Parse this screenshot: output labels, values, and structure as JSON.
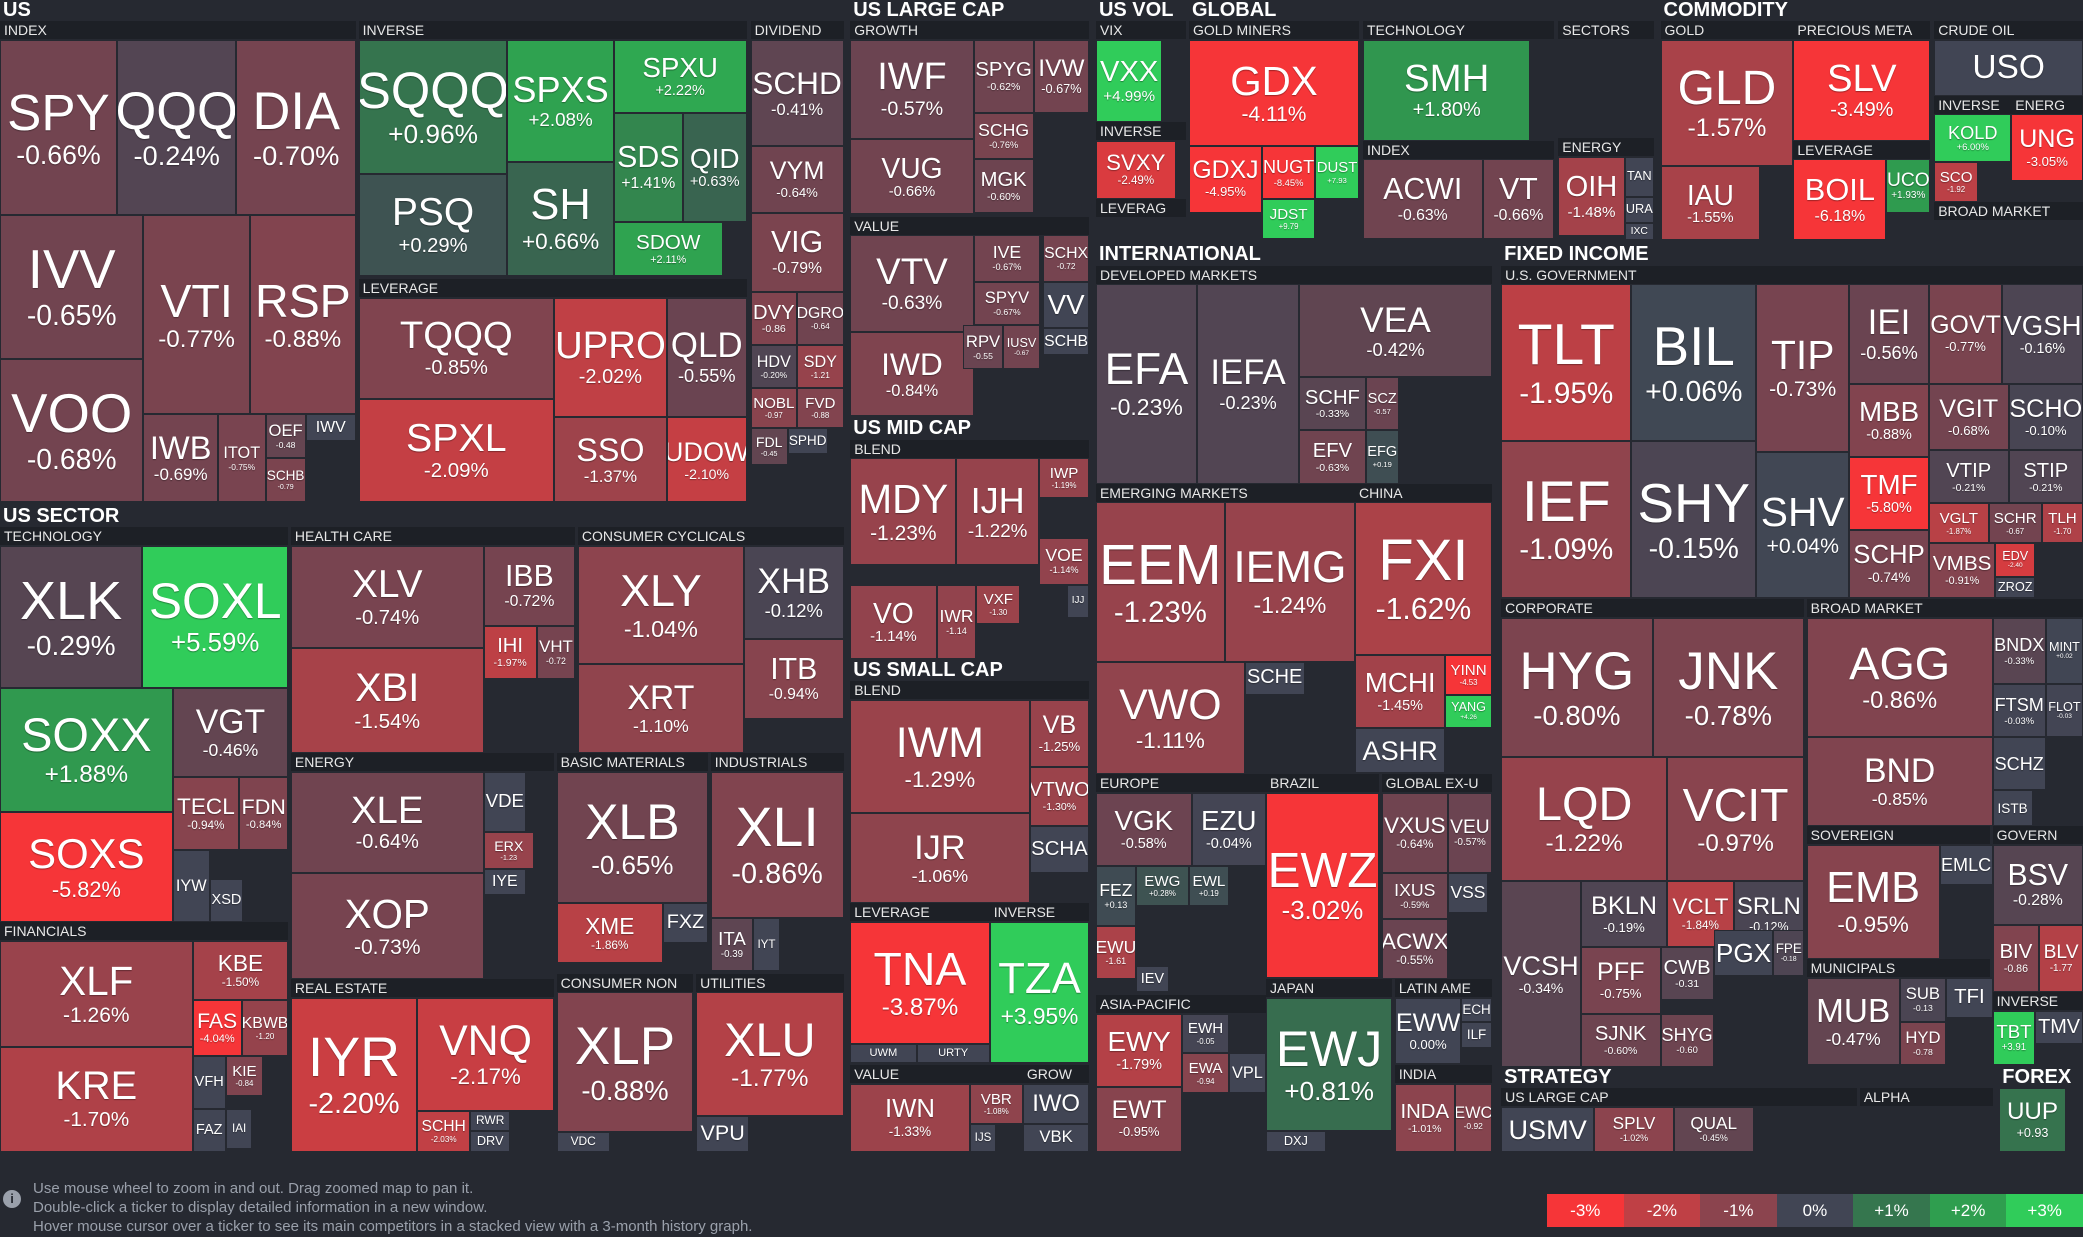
{
  "sections": [
    "US",
    "US LARGE CAP",
    "US VOL",
    "GLOBAL",
    "COMMODITY",
    "US SECTOR",
    "US MID CAP",
    "US SMALL CAP",
    "INTERNATIONAL",
    "FIXED INCOME",
    "STRATEGY",
    "FOREX"
  ],
  "groups": [
    "INDEX",
    "INVERSE",
    "DIVIDEND",
    "LEVERAGE",
    "GROWTH",
    "VALUE",
    "VIX",
    "INVERSE",
    "LEVERAG",
    "GOLD MINERS",
    "TECHNOLOGY",
    "INDEX",
    "SECTORS",
    "ENERGY",
    "GOLD",
    "PRECIOUS META",
    "LEVERAGE",
    "CRUDE OIL",
    "INVERSE",
    "ENERG",
    "BROAD MARKET",
    "TECHNOLOGY",
    "FINANCIALS",
    "HEALTH CARE",
    "ENERGY",
    "REAL ESTATE",
    "CONSUMER CYCLICALS",
    "BASIC MATERIALS",
    "INDUSTRIALS",
    "CONSUMER NON",
    "UTILITIES",
    "BLEND",
    "BLEND",
    "LEVERAGE",
    "INVERSE",
    "VALUE",
    "GROW",
    "DEVELOPED MARKETS",
    "EMERGING MARKETS",
    "CHINA",
    "EUROPE",
    "BRAZIL",
    "GLOBAL EX-U",
    "ASIA-PACIFIC",
    "JAPAN",
    "LATIN AME",
    "INDIA",
    "U.S. GOVERNMENT",
    "CORPORATE",
    "BROAD MARKET",
    "SOVEREIGN",
    "GOVERN",
    "MUNICIPALS",
    "INVERSE",
    "US LARGE CAP",
    "ALPHA"
  ],
  "tiles": [
    {
      "ticker": "SPY",
      "change": "-0.66%"
    },
    {
      "ticker": "QQQ",
      "change": "-0.24%"
    },
    {
      "ticker": "DIA",
      "change": "-0.70%"
    },
    {
      "ticker": "IVV",
      "change": "-0.65%"
    },
    {
      "ticker": "VTI",
      "change": "-0.77%"
    },
    {
      "ticker": "RSP",
      "change": "-0.88%"
    },
    {
      "ticker": "VOO",
      "change": "-0.68%"
    },
    {
      "ticker": "IWB",
      "change": "-0.69%"
    },
    {
      "ticker": "ITOT",
      "change": "-0.75%"
    },
    {
      "ticker": "OEF",
      "change": "-0.48"
    },
    {
      "ticker": "IWV"
    },
    {
      "ticker": "SCHB",
      "change": "-0.79"
    },
    {
      "ticker": "SQQQ",
      "change": "+0.96%"
    },
    {
      "ticker": "SPXS",
      "change": "+2.08%"
    },
    {
      "ticker": "SPXU",
      "change": "+2.22%"
    },
    {
      "ticker": "PSQ",
      "change": "+0.29%"
    },
    {
      "ticker": "SH",
      "change": "+0.66%"
    },
    {
      "ticker": "SDS",
      "change": "+1.41%"
    },
    {
      "ticker": "QID",
      "change": "+0.63%"
    },
    {
      "ticker": "SDOW",
      "change": "+2.11%"
    },
    {
      "ticker": "TQQQ",
      "change": "-0.85%"
    },
    {
      "ticker": "SPXL",
      "change": "-2.09%"
    },
    {
      "ticker": "UPRO",
      "change": "-2.02%"
    },
    {
      "ticker": "QLD",
      "change": "-0.55%"
    },
    {
      "ticker": "SSO",
      "change": "-1.37%"
    },
    {
      "ticker": "UDOW",
      "change": "-2.10%"
    },
    {
      "ticker": "SCHD",
      "change": "-0.41%"
    },
    {
      "ticker": "VYM",
      "change": "-0.64%"
    },
    {
      "ticker": "VIG",
      "change": "-0.79%"
    },
    {
      "ticker": "DVY",
      "change": "-0.86"
    },
    {
      "ticker": "DGRO",
      "change": "-0.64"
    },
    {
      "ticker": "HDV",
      "change": "-0.20%"
    },
    {
      "ticker": "SDY",
      "change": "-1.21"
    },
    {
      "ticker": "NOBL",
      "change": "-0.97"
    },
    {
      "ticker": "FVD",
      "change": "-0.88"
    },
    {
      "ticker": "FDL",
      "change": "-0.45"
    },
    {
      "ticker": "SPHD"
    },
    {
      "ticker": "IWF",
      "change": "-0.57%"
    },
    {
      "ticker": "SPYG",
      "change": "-0.62%"
    },
    {
      "ticker": "IVW",
      "change": "-0.67%"
    },
    {
      "ticker": "SCHG",
      "change": "-0.76%"
    },
    {
      "ticker": "MGK",
      "change": "-0.60%"
    },
    {
      "ticker": "VUG",
      "change": "-0.66%"
    },
    {
      "ticker": "VTV",
      "change": "-0.63%"
    },
    {
      "ticker": "IWD",
      "change": "-0.84%"
    },
    {
      "ticker": "IVE",
      "change": "-0.67%"
    },
    {
      "ticker": "SPYV",
      "change": "-0.67%"
    },
    {
      "ticker": "RPV",
      "change": "-0.55"
    },
    {
      "ticker": "IUSV",
      "change": "-0.67"
    },
    {
      "ticker": "SCHX",
      "change": "-0.72"
    },
    {
      "ticker": "VV"
    },
    {
      "ticker": "SCHB"
    },
    {
      "ticker": "VXX",
      "change": "+4.99%"
    },
    {
      "ticker": "SVXY",
      "change": "-2.49%"
    },
    {
      "ticker": "GDX",
      "change": "-4.11%"
    },
    {
      "ticker": "GDXJ",
      "change": "-4.95%"
    },
    {
      "ticker": "NUGT",
      "change": "-8.45%"
    },
    {
      "ticker": "DUST",
      "change": "+7.93"
    },
    {
      "ticker": "JDST",
      "change": "+9.79"
    },
    {
      "ticker": "SMH",
      "change": "+1.80%"
    },
    {
      "ticker": "ACWI",
      "change": "-0.63%"
    },
    {
      "ticker": "VT",
      "change": "-0.66%"
    },
    {
      "ticker": "OIH",
      "change": "-1.48%"
    },
    {
      "ticker": "TAN"
    },
    {
      "ticker": "URA"
    },
    {
      "ticker": "IXC"
    },
    {
      "ticker": "GLD",
      "change": "-1.57%"
    },
    {
      "ticker": "IAU",
      "change": "-1.55%"
    },
    {
      "ticker": "SLV",
      "change": "-3.49%"
    },
    {
      "ticker": "BOIL",
      "change": "-6.18%"
    },
    {
      "ticker": "UCO",
      "change": "+1.93%"
    },
    {
      "ticker": "USO"
    },
    {
      "ticker": "KOLD",
      "change": "+6.00%"
    },
    {
      "ticker": "SCO",
      "change": "-1.92"
    },
    {
      "ticker": "UNG",
      "change": "-3.05%"
    },
    {
      "ticker": "XLK",
      "change": "-0.29%"
    },
    {
      "ticker": "SOXL",
      "change": "+5.59%"
    },
    {
      "ticker": "SOXX",
      "change": "+1.88%"
    },
    {
      "ticker": "SOXS",
      "change": "-5.82%"
    },
    {
      "ticker": "VGT",
      "change": "-0.46%"
    },
    {
      "ticker": "TECL",
      "change": "-0.94%"
    },
    {
      "ticker": "FDN",
      "change": "-0.84%"
    },
    {
      "ticker": "IYW"
    },
    {
      "ticker": "XSD"
    },
    {
      "ticker": "XLF",
      "change": "-1.26%"
    },
    {
      "ticker": "KRE",
      "change": "-1.70%"
    },
    {
      "ticker": "KBE",
      "change": "-1.50%"
    },
    {
      "ticker": "FAS",
      "change": "-4.04%"
    },
    {
      "ticker": "KBWB",
      "change": "-1.20"
    },
    {
      "ticker": "VFH"
    },
    {
      "ticker": "KIE",
      "change": "-0.84"
    },
    {
      "ticker": "FAZ"
    },
    {
      "ticker": "IAI"
    },
    {
      "ticker": "XLV",
      "change": "-0.74%"
    },
    {
      "ticker": "XBI",
      "change": "-1.54%"
    },
    {
      "ticker": "IBB",
      "change": "-0.72%"
    },
    {
      "ticker": "IHI",
      "change": "-1.97%"
    },
    {
      "ticker": "VHT",
      "change": "-0.72"
    },
    {
      "ticker": "XLY",
      "change": "-1.04%"
    },
    {
      "ticker": "XRT",
      "change": "-1.10%"
    },
    {
      "ticker": "XHB",
      "change": "-0.12%"
    },
    {
      "ticker": "ITB",
      "change": "-0.94%"
    },
    {
      "ticker": "XLE",
      "change": "-0.64%"
    },
    {
      "ticker": "XOP",
      "change": "-0.73%"
    },
    {
      "ticker": "VDE"
    },
    {
      "ticker": "ERX",
      "change": "-1.23"
    },
    {
      "ticker": "IYE"
    },
    {
      "ticker": "IYR",
      "change": "-2.20%"
    },
    {
      "ticker": "VNQ",
      "change": "-2.17%"
    },
    {
      "ticker": "SCHH",
      "change": "-2.03%"
    },
    {
      "ticker": "RWR"
    },
    {
      "ticker": "DRV"
    },
    {
      "ticker": "XLB",
      "change": "-0.65%"
    },
    {
      "ticker": "XME",
      "change": "-1.86%"
    },
    {
      "ticker": "FXZ"
    },
    {
      "ticker": "XLI",
      "change": "-0.86%"
    },
    {
      "ticker": "ITA",
      "change": "-0.39"
    },
    {
      "ticker": "IYT"
    },
    {
      "ticker": "XLP",
      "change": "-0.88%"
    },
    {
      "ticker": "VDC"
    },
    {
      "ticker": "XLU",
      "change": "-1.77%"
    },
    {
      "ticker": "VPU"
    },
    {
      "ticker": "MDY",
      "change": "-1.23%"
    },
    {
      "ticker": "IJH",
      "change": "-1.22%"
    },
    {
      "ticker": "IWP",
      "change": "-1.19%"
    },
    {
      "ticker": "VOE",
      "change": "-1.14%"
    },
    {
      "ticker": "VXF",
      "change": "-1.30"
    },
    {
      "ticker": "VO",
      "change": "-1.14%"
    },
    {
      "ticker": "IWR",
      "change": "-1.14"
    },
    {
      "ticker": "IJJ"
    },
    {
      "ticker": "IWM",
      "change": "-1.29%"
    },
    {
      "ticker": "IJR",
      "change": "-1.06%"
    },
    {
      "ticker": "VB",
      "change": "-1.25%"
    },
    {
      "ticker": "VTWO",
      "change": "-1.30%"
    },
    {
      "ticker": "SCHA"
    },
    {
      "ticker": "TNA",
      "change": "-3.87%"
    },
    {
      "ticker": "UWM"
    },
    {
      "ticker": "URTY"
    },
    {
      "ticker": "TZA",
      "change": "+3.95%"
    },
    {
      "ticker": "IWN",
      "change": "-1.33%"
    },
    {
      "ticker": "VBR",
      "change": "-1.08%"
    },
    {
      "ticker": "IJS"
    },
    {
      "ticker": "IWO"
    },
    {
      "ticker": "VBK"
    },
    {
      "ticker": "VEA",
      "change": "-0.42%"
    },
    {
      "ticker": "EFA",
      "change": "-0.23%"
    },
    {
      "ticker": "IEFA",
      "change": "-0.23%"
    },
    {
      "ticker": "SCHF",
      "change": "-0.33%"
    },
    {
      "ticker": "SCZ",
      "change": "-0.57"
    },
    {
      "ticker": "EFV",
      "change": "-0.63%"
    },
    {
      "ticker": "EFG",
      "change": "+0.19"
    },
    {
      "ticker": "EEM",
      "change": "-1.23%"
    },
    {
      "ticker": "IEMG",
      "change": "-1.24%"
    },
    {
      "ticker": "VWO",
      "change": "-1.11%"
    },
    {
      "ticker": "SCHE"
    },
    {
      "ticker": "FXI",
      "change": "-1.62%"
    },
    {
      "ticker": "MCHI",
      "change": "-1.45%"
    },
    {
      "ticker": "YINN",
      "change": "-4.53"
    },
    {
      "ticker": "YANG",
      "change": "+4.26"
    },
    {
      "ticker": "ASHR"
    },
    {
      "ticker": "VGK",
      "change": "-0.58%"
    },
    {
      "ticker": "EZU",
      "change": "-0.04%"
    },
    {
      "ticker": "FEZ",
      "change": "+0.13"
    },
    {
      "ticker": "EWG",
      "change": "+0.28%"
    },
    {
      "ticker": "EWL",
      "change": "+0.19"
    },
    {
      "ticker": "EWU",
      "change": "-1.61"
    },
    {
      "ticker": "IEV"
    },
    {
      "ticker": "EWZ",
      "change": "-3.02%"
    },
    {
      "ticker": "VXUS",
      "change": "-0.64%"
    },
    {
      "ticker": "VEU",
      "change": "-0.57%"
    },
    {
      "ticker": "IXUS",
      "change": "-0.59%"
    },
    {
      "ticker": "VSS"
    },
    {
      "ticker": "ACWX",
      "change": "-0.55%"
    },
    {
      "ticker": "EWY",
      "change": "-1.79%"
    },
    {
      "ticker": "EWT",
      "change": "-0.95%"
    },
    {
      "ticker": "EWH",
      "change": "-0.05"
    },
    {
      "ticker": "EWA",
      "change": "-0.94"
    },
    {
      "ticker": "VPL"
    },
    {
      "ticker": "EWJ",
      "change": "+0.81%"
    },
    {
      "ticker": "DXJ"
    },
    {
      "ticker": "EWW",
      "change": "0.00%"
    },
    {
      "ticker": "ECH"
    },
    {
      "ticker": "ILF"
    },
    {
      "ticker": "INDA",
      "change": "-1.01%"
    },
    {
      "ticker": "EWC",
      "change": "-0.92"
    },
    {
      "ticker": "TLT",
      "change": "-1.95%"
    },
    {
      "ticker": "BIL",
      "change": "+0.06%"
    },
    {
      "ticker": "TIP",
      "change": "-0.73%"
    },
    {
      "ticker": "IEF",
      "change": "-1.09%"
    },
    {
      "ticker": "SHY",
      "change": "-0.15%"
    },
    {
      "ticker": "SHV",
      "change": "+0.04%"
    },
    {
      "ticker": "IEI",
      "change": "-0.56%"
    },
    {
      "ticker": "GOVT",
      "change": "-0.77%"
    },
    {
      "ticker": "VGSH",
      "change": "-0.16%"
    },
    {
      "ticker": "MBB",
      "change": "-0.88%"
    },
    {
      "ticker": "VGIT",
      "change": "-0.68%"
    },
    {
      "ticker": "SCHO",
      "change": "-0.10%"
    },
    {
      "ticker": "VTIP",
      "change": "-0.21%"
    },
    {
      "ticker": "STIP",
      "change": "-0.21%"
    },
    {
      "ticker": "TMF",
      "change": "-5.80%"
    },
    {
      "ticker": "SCHP",
      "change": "-0.74%"
    },
    {
      "ticker": "VGLT",
      "change": "-1.87%"
    },
    {
      "ticker": "SCHR",
      "change": "-0.67"
    },
    {
      "ticker": "TLH",
      "change": "-1.70"
    },
    {
      "ticker": "VMBS",
      "change": "-0.91%"
    },
    {
      "ticker": "EDV",
      "change": "-2.40"
    },
    {
      "ticker": "ZROZ"
    },
    {
      "ticker": "HYG",
      "change": "-0.80%"
    },
    {
      "ticker": "JNK",
      "change": "-0.78%"
    },
    {
      "ticker": "LQD",
      "change": "-1.22%"
    },
    {
      "ticker": "VCIT",
      "change": "-0.97%"
    },
    {
      "ticker": "AGG",
      "change": "-0.86%"
    },
    {
      "ticker": "BND",
      "change": "-0.85%"
    },
    {
      "ticker": "BNDX",
      "change": "-0.33%"
    },
    {
      "ticker": "MINT",
      "change": "+0.02"
    },
    {
      "ticker": "FTSM",
      "change": "-0.03%"
    },
    {
      "ticker": "FLOT",
      "change": "-0.03"
    },
    {
      "ticker": "SCHZ"
    },
    {
      "ticker": "ISTB"
    },
    {
      "ticker": "VCSH",
      "change": "-0.34%"
    },
    {
      "ticker": "BKLN",
      "change": "-0.19%"
    },
    {
      "ticker": "VCLT",
      "change": "-1.84%"
    },
    {
      "ticker": "SRLN",
      "change": "-0.12%"
    },
    {
      "ticker": "PFF",
      "change": "-0.75%"
    },
    {
      "ticker": "CWB",
      "change": "-0.31"
    },
    {
      "ticker": "PGX"
    },
    {
      "ticker": "FPE",
      "change": "-0.18"
    },
    {
      "ticker": "SJNK",
      "change": "-0.60%"
    },
    {
      "ticker": "SHYG",
      "change": "-0.60"
    },
    {
      "ticker": "EMB",
      "change": "-0.95%"
    },
    {
      "ticker": "EMLC"
    },
    {
      "ticker": "BSV",
      "change": "-0.28%"
    },
    {
      "ticker": "BIV",
      "change": "-0.86"
    },
    {
      "ticker": "BLV",
      "change": "-1.77"
    },
    {
      "ticker": "MUB",
      "change": "-0.47%"
    },
    {
      "ticker": "SUB",
      "change": "-0.13"
    },
    {
      "ticker": "TFI"
    },
    {
      "ticker": "HYD",
      "change": "-0.78"
    },
    {
      "ticker": "TBT",
      "change": "+3.91"
    },
    {
      "ticker": "TMV"
    },
    {
      "ticker": "USMV"
    },
    {
      "ticker": "SPLV",
      "change": "-1.02%"
    },
    {
      "ticker": "QUAL",
      "change": "-0.45%"
    },
    {
      "ticker": "UUP",
      "change": "+0.93"
    }
  ],
  "footer": [
    "Use mouse wheel to zoom in and out. Drag zoomed map to pan it.",
    "Double-click a ticker to display detailed information in a new window.",
    "Hover mouse cursor over a ticker to see its main competitors in a stacked view with a 3-month history graph."
  ],
  "legend": [
    {
      "label": "-3%",
      "color": "#f63538"
    },
    {
      "label": "-2%",
      "color": "#bf4045"
    },
    {
      "label": "-1%",
      "color": "#8b444e"
    },
    {
      "label": "0%",
      "color": "#414554"
    },
    {
      "label": "+1%",
      "color": "#35764e"
    },
    {
      "label": "+2%",
      "color": "#2f9e4f"
    },
    {
      "label": "+3%",
      "color": "#30cc5a"
    }
  ]
}
